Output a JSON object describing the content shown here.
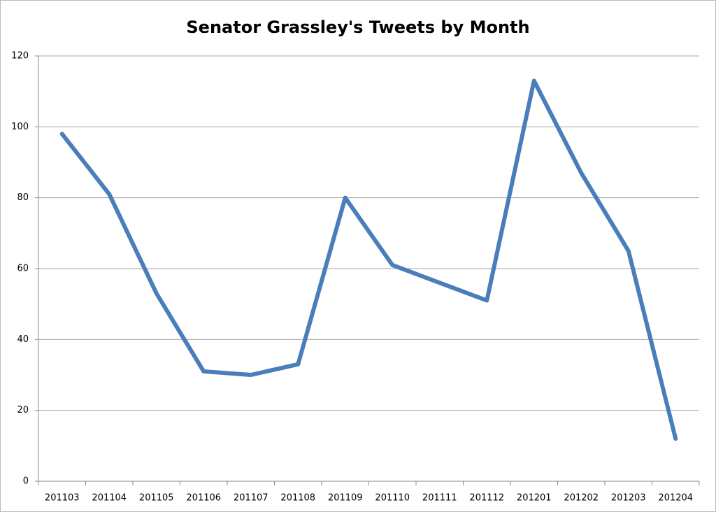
{
  "chart_data": {
    "type": "line",
    "title": "Senator Grassley's Tweets by Month",
    "categories": [
      "201103",
      "201104",
      "201105",
      "201106",
      "201107",
      "201108",
      "201109",
      "201110",
      "201111",
      "201112",
      "201201",
      "201202",
      "201203",
      "201204"
    ],
    "values": [
      98,
      81,
      53,
      31,
      30,
      33,
      80,
      61,
      56,
      51,
      113,
      87,
      65,
      12
    ],
    "color": "#4a7ebb",
    "ylim": [
      0,
      120
    ],
    "yticks": [
      0,
      20,
      40,
      60,
      80,
      100,
      120
    ],
    "grid": true
  }
}
